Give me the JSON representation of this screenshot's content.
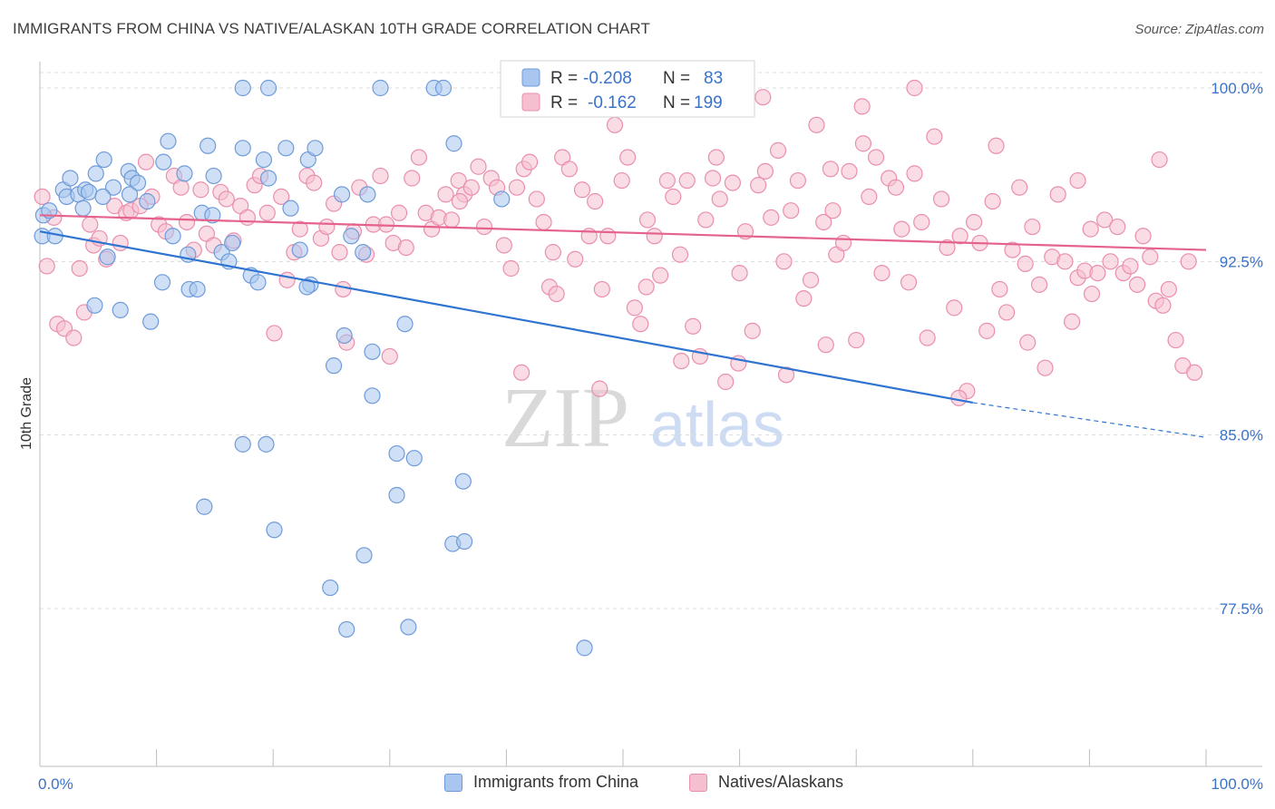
{
  "title": "IMMIGRANTS FROM CHINA VS NATIVE/ALASKAN 10TH GRADE CORRELATION CHART",
  "source": "Source: ZipAtlas.com",
  "watermark": {
    "zip": "ZIP",
    "atlas": "atlas"
  },
  "colors": {
    "blue_fill": "#a8c6ef",
    "blue_stroke": "#6f9bd9",
    "blue_line": "#2f74d0",
    "pink_fill": "#f6bfd0",
    "pink_stroke": "#e98fae",
    "pink_line": "#e4628c",
    "axis_text": "#3a72c8",
    "grid": "#dcdcdc"
  },
  "legend_top": {
    "rows": [
      {
        "r_label": "R =",
        "r_value": "-0.208",
        "n_label": "N =",
        "n_value": "83"
      },
      {
        "r_label": "R =",
        "r_value": "-0.162",
        "n_label": "N =",
        "n_value": "199"
      }
    ]
  },
  "legend_bottom": [
    "Immigrants from China",
    "Natives/Alaskans"
  ],
  "chart_data": {
    "type": "scatter",
    "title": "IMMIGRANTS FROM CHINA VS NATIVE/ALASKAN 10TH GRADE CORRELATION CHART",
    "xlabel": "",
    "ylabel": "10th Grade",
    "xlim": [
      0,
      100
    ],
    "ylim": [
      70.0,
      101.5
    ],
    "x_tick_labels": [
      "0.0%",
      "100.0%"
    ],
    "y_ticks": [
      100.0,
      92.5,
      85.0,
      77.5
    ],
    "y_tick_labels": [
      "100.0%",
      "92.5%",
      "85.0%",
      "77.5%"
    ],
    "grid": true,
    "legend_position": "top-center",
    "series": [
      {
        "name": "Immigrants from China",
        "color": "#a8c6ef",
        "R": -0.208,
        "N": 83,
        "trend": {
          "x0": 0,
          "y0": 93.8,
          "x1": 80,
          "y1": 86.4,
          "dashed_to_x": 100,
          "dashed_to_y": 84.9
        },
        "points": [
          [
            0.3,
            94.5
          ],
          [
            0.2,
            93.6
          ],
          [
            0.8,
            94.7
          ],
          [
            1.3,
            93.6
          ],
          [
            2.0,
            95.6
          ],
          [
            2.3,
            95.3
          ],
          [
            2.6,
            96.1
          ],
          [
            3.3,
            95.4
          ],
          [
            3.7,
            94.8
          ],
          [
            3.9,
            95.6
          ],
          [
            4.2,
            95.5
          ],
          [
            4.8,
            96.3
          ],
          [
            5.5,
            96.9
          ],
          [
            6.3,
            95.7
          ],
          [
            5.4,
            95.3
          ],
          [
            7.6,
            96.4
          ],
          [
            7.9,
            96.1
          ],
          [
            8.4,
            95.9
          ],
          [
            7.7,
            95.4
          ],
          [
            10.6,
            96.8
          ],
          [
            11.0,
            97.7
          ],
          [
            9.2,
            95.1
          ],
          [
            12.4,
            96.3
          ],
          [
            14.4,
            97.5
          ],
          [
            14.9,
            96.2
          ],
          [
            13.9,
            94.6
          ],
          [
            14.8,
            94.5
          ],
          [
            11.4,
            93.6
          ],
          [
            12.7,
            92.8
          ],
          [
            15.6,
            92.9
          ],
          [
            16.2,
            92.5
          ],
          [
            16.5,
            93.3
          ],
          [
            19.2,
            96.9
          ],
          [
            19.6,
            96.1
          ],
          [
            21.1,
            97.4
          ],
          [
            23.0,
            96.9
          ],
          [
            23.6,
            97.4
          ],
          [
            21.5,
            94.8
          ],
          [
            22.3,
            93.0
          ],
          [
            17.4,
            97.4
          ],
          [
            18.1,
            91.9
          ],
          [
            18.7,
            91.6
          ],
          [
            23.2,
            91.5
          ],
          [
            22.9,
            91.4
          ],
          [
            26.7,
            93.6
          ],
          [
            27.7,
            92.9
          ],
          [
            25.9,
            95.4
          ],
          [
            28.1,
            95.4
          ],
          [
            5.8,
            92.7
          ],
          [
            4.7,
            90.6
          ],
          [
            6.9,
            90.4
          ],
          [
            10.5,
            91.6
          ],
          [
            12.8,
            91.3
          ],
          [
            13.5,
            91.3
          ],
          [
            9.5,
            89.9
          ],
          [
            25.2,
            88.0
          ],
          [
            26.1,
            89.3
          ],
          [
            28.5,
            88.6
          ],
          [
            31.3,
            89.8
          ],
          [
            28.5,
            86.7
          ],
          [
            35.5,
            97.6
          ],
          [
            39.6,
            95.2
          ],
          [
            17.4,
            100.0
          ],
          [
            19.6,
            100.0
          ],
          [
            29.2,
            100.0
          ],
          [
            33.8,
            100.0
          ],
          [
            34.6,
            100.0
          ],
          [
            40.6,
            100.0
          ],
          [
            17.4,
            84.6
          ],
          [
            19.4,
            84.6
          ],
          [
            30.6,
            84.2
          ],
          [
            32.1,
            84.0
          ],
          [
            30.6,
            82.4
          ],
          [
            36.3,
            83.0
          ],
          [
            14.1,
            81.9
          ],
          [
            20.1,
            80.9
          ],
          [
            27.8,
            79.8
          ],
          [
            35.4,
            80.3
          ],
          [
            36.4,
            80.4
          ],
          [
            24.9,
            78.4
          ],
          [
            26.3,
            76.6
          ],
          [
            31.6,
            76.7
          ],
          [
            46.7,
            75.8
          ]
        ]
      },
      {
        "name": "Natives/Alaskans",
        "color": "#f6bfd0",
        "R": -0.162,
        "N": 199,
        "trend": {
          "x0": 0,
          "y0": 94.5,
          "x1": 100,
          "y1": 93.0
        },
        "points": [
          [
            0.2,
            95.3
          ],
          [
            0.6,
            92.3
          ],
          [
            1.2,
            94.4
          ],
          [
            1.5,
            89.8
          ],
          [
            2.1,
            89.6
          ],
          [
            2.9,
            89.2
          ],
          [
            3.4,
            92.2
          ],
          [
            3.8,
            90.3
          ],
          [
            4.3,
            94.1
          ],
          [
            4.6,
            93.2
          ],
          [
            5.1,
            93.5
          ],
          [
            5.7,
            92.6
          ],
          [
            6.4,
            94.9
          ],
          [
            6.9,
            93.3
          ],
          [
            7.4,
            94.6
          ],
          [
            7.8,
            94.7
          ],
          [
            8.6,
            94.9
          ],
          [
            9.1,
            96.8
          ],
          [
            9.6,
            95.3
          ],
          [
            10.2,
            94.1
          ],
          [
            10.8,
            93.8
          ],
          [
            11.5,
            96.2
          ],
          [
            12.1,
            95.7
          ],
          [
            12.6,
            94.2
          ],
          [
            13.2,
            93.0
          ],
          [
            13.8,
            95.6
          ],
          [
            14.3,
            93.7
          ],
          [
            14.9,
            93.2
          ],
          [
            15.5,
            95.5
          ],
          [
            16.0,
            95.2
          ],
          [
            16.6,
            93.4
          ],
          [
            17.2,
            94.9
          ],
          [
            17.8,
            94.4
          ],
          [
            18.4,
            95.8
          ],
          [
            18.9,
            96.2
          ],
          [
            19.5,
            94.6
          ],
          [
            20.1,
            89.4
          ],
          [
            20.7,
            95.3
          ],
          [
            21.2,
            91.7
          ],
          [
            21.8,
            92.9
          ],
          [
            22.3,
            93.9
          ],
          [
            22.9,
            96.2
          ],
          [
            23.5,
            95.9
          ],
          [
            24.1,
            93.5
          ],
          [
            24.6,
            94.0
          ],
          [
            25.2,
            95.0
          ],
          [
            25.7,
            92.9
          ],
          [
            26.3,
            89.0
          ],
          [
            26.9,
            93.8
          ],
          [
            27.4,
            95.7
          ],
          [
            28.0,
            92.8
          ],
          [
            28.6,
            94.1
          ],
          [
            29.2,
            96.2
          ],
          [
            29.7,
            94.1
          ],
          [
            30.3,
            93.3
          ],
          [
            30.8,
            94.6
          ],
          [
            31.4,
            93.1
          ],
          [
            31.9,
            96.1
          ],
          [
            32.5,
            97.0
          ],
          [
            33.1,
            94.6
          ],
          [
            33.6,
            93.9
          ],
          [
            34.2,
            94.4
          ],
          [
            34.8,
            95.4
          ],
          [
            35.3,
            94.3
          ],
          [
            35.9,
            96.0
          ],
          [
            36.4,
            95.4
          ],
          [
            37.0,
            95.7
          ],
          [
            37.6,
            96.6
          ],
          [
            38.1,
            94.0
          ],
          [
            38.7,
            96.1
          ],
          [
            39.2,
            95.7
          ],
          [
            39.8,
            93.2
          ],
          [
            40.4,
            92.2
          ],
          [
            40.9,
            95.7
          ],
          [
            41.5,
            96.5
          ],
          [
            42.0,
            96.8
          ],
          [
            42.6,
            95.2
          ],
          [
            43.2,
            94.2
          ],
          [
            43.7,
            91.4
          ],
          [
            44.3,
            91.1
          ],
          [
            44.8,
            97.0
          ],
          [
            45.4,
            96.5
          ],
          [
            45.9,
            92.6
          ],
          [
            46.5,
            95.6
          ],
          [
            47.1,
            93.6
          ],
          [
            47.6,
            95.1
          ],
          [
            48.2,
            91.3
          ],
          [
            48.7,
            93.6
          ],
          [
            49.3,
            98.4
          ],
          [
            49.9,
            96.0
          ],
          [
            50.4,
            97.0
          ],
          [
            51.0,
            90.5
          ],
          [
            51.5,
            89.8
          ],
          [
            52.1,
            94.3
          ],
          [
            52.7,
            93.6
          ],
          [
            53.2,
            91.9
          ],
          [
            53.8,
            96.0
          ],
          [
            54.3,
            95.3
          ],
          [
            54.9,
            92.8
          ],
          [
            55.5,
            96.0
          ],
          [
            56.0,
            89.7
          ],
          [
            56.6,
            88.4
          ],
          [
            57.1,
            94.3
          ],
          [
            57.7,
            96.1
          ],
          [
            58.3,
            95.2
          ],
          [
            58.8,
            87.3
          ],
          [
            59.4,
            95.9
          ],
          [
            59.9,
            88.1
          ],
          [
            60.5,
            93.8
          ],
          [
            61.1,
            89.5
          ],
          [
            61.6,
            95.8
          ],
          [
            62.2,
            96.4
          ],
          [
            62.7,
            94.4
          ],
          [
            63.3,
            97.3
          ],
          [
            63.8,
            92.5
          ],
          [
            64.4,
            94.7
          ],
          [
            65.0,
            96.0
          ],
          [
            65.5,
            90.9
          ],
          [
            66.1,
            91.7
          ],
          [
            66.6,
            98.4
          ],
          [
            67.2,
            94.2
          ],
          [
            67.8,
            96.5
          ],
          [
            68.3,
            92.8
          ],
          [
            68.9,
            93.3
          ],
          [
            69.4,
            96.4
          ],
          [
            70.0,
            89.1
          ],
          [
            70.6,
            97.6
          ],
          [
            71.1,
            95.3
          ],
          [
            71.7,
            97.0
          ],
          [
            72.2,
            92.0
          ],
          [
            72.8,
            96.1
          ],
          [
            73.4,
            95.7
          ],
          [
            73.9,
            93.9
          ],
          [
            74.5,
            91.6
          ],
          [
            75.0,
            96.3
          ],
          [
            75.6,
            94.2
          ],
          [
            76.1,
            89.2
          ],
          [
            76.7,
            97.9
          ],
          [
            77.3,
            95.2
          ],
          [
            77.8,
            93.1
          ],
          [
            78.4,
            90.5
          ],
          [
            78.9,
            93.6
          ],
          [
            79.5,
            86.9
          ],
          [
            80.1,
            94.2
          ],
          [
            80.6,
            93.3
          ],
          [
            81.2,
            89.5
          ],
          [
            81.7,
            95.1
          ],
          [
            82.3,
            91.3
          ],
          [
            82.9,
            90.3
          ],
          [
            83.4,
            93.0
          ],
          [
            84.0,
            95.7
          ],
          [
            84.5,
            92.4
          ],
          [
            85.1,
            94.0
          ],
          [
            85.7,
            91.5
          ],
          [
            86.2,
            87.9
          ],
          [
            86.8,
            92.7
          ],
          [
            87.3,
            95.4
          ],
          [
            87.9,
            92.5
          ],
          [
            88.5,
            89.9
          ],
          [
            89.0,
            91.8
          ],
          [
            89.6,
            92.1
          ],
          [
            90.1,
            93.9
          ],
          [
            90.7,
            92.0
          ],
          [
            91.3,
            94.3
          ],
          [
            91.8,
            92.5
          ],
          [
            92.4,
            94.0
          ],
          [
            92.9,
            92.0
          ],
          [
            93.5,
            92.3
          ],
          [
            94.1,
            91.5
          ],
          [
            94.6,
            93.6
          ],
          [
            95.2,
            92.7
          ],
          [
            95.7,
            90.8
          ],
          [
            96.3,
            90.6
          ],
          [
            96.8,
            91.3
          ],
          [
            97.4,
            89.1
          ],
          [
            98.0,
            88.0
          ],
          [
            98.5,
            92.5
          ],
          [
            99.0,
            87.7
          ],
          [
            41.3,
            87.7
          ],
          [
            67.4,
            88.9
          ],
          [
            78.8,
            86.6
          ],
          [
            60.0,
            92.0
          ],
          [
            55.0,
            88.2
          ],
          [
            64.0,
            87.6
          ],
          [
            48.0,
            87.0
          ],
          [
            30.0,
            88.4
          ],
          [
            70.5,
            99.2
          ],
          [
            75.0,
            100.0
          ],
          [
            58.0,
            97.0
          ],
          [
            82.0,
            97.5
          ],
          [
            89.0,
            96.0
          ],
          [
            44.0,
            92.9
          ],
          [
            52.0,
            91.4
          ],
          [
            36.0,
            95.1
          ],
          [
            26.0,
            91.3
          ],
          [
            96.0,
            96.9
          ],
          [
            62.0,
            99.6
          ],
          [
            90.2,
            91.1
          ],
          [
            68.0,
            94.7
          ],
          [
            84.7,
            89.0
          ]
        ]
      }
    ]
  }
}
